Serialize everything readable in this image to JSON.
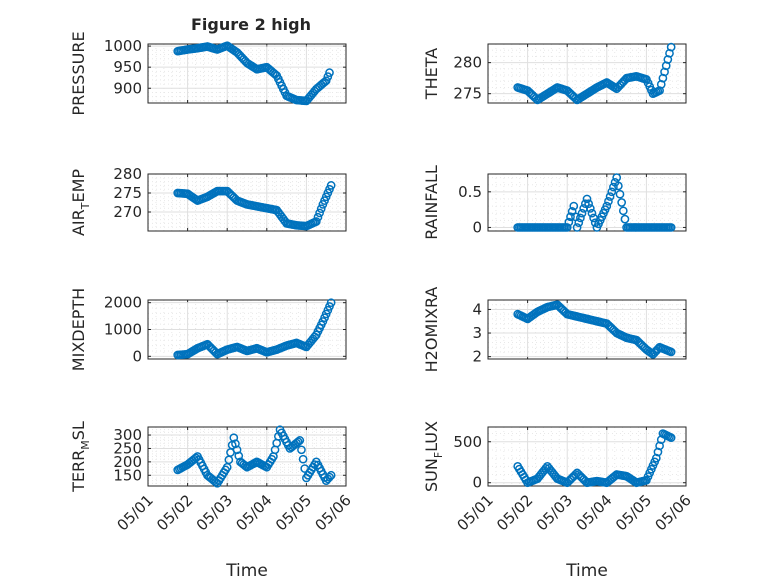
{
  "figure": {
    "title": "Figure 2 high"
  },
  "chart_data": [
    {
      "type": "scatter",
      "title": "Figure 2 high",
      "xlabel": "",
      "ylabel": "PRESSURE",
      "xlim": [
        "05/01",
        "05/06"
      ],
      "ylim": [
        865,
        1005
      ],
      "yticks": [
        900,
        950,
        1000
      ],
      "xticks": [
        "05/01",
        "05/02",
        "05/03",
        "05/04",
        "05/05",
        "05/06"
      ],
      "show_xticklabels": false,
      "grid": true,
      "minor_grid": true,
      "color": "#0072BD",
      "series": [
        {
          "x": [
            "05/01 18:00",
            "05/02 00:00",
            "05/02 06:00",
            "05/02 12:00",
            "05/02 18:00",
            "05/03 00:00",
            "05/03 06:00",
            "05/03 12:00",
            "05/03 18:00",
            "05/04 00:00",
            "05/04 06:00",
            "05/04 12:00",
            "05/04 18:00",
            "05/05 00:00",
            "05/05 06:00",
            "05/05 12:00",
            "05/05 14:00"
          ],
          "y": [
            988,
            992,
            995,
            999,
            992,
            1001,
            985,
            960,
            945,
            950,
            930,
            882,
            872,
            870,
            898,
            918,
            937
          ]
        }
      ]
    },
    {
      "type": "scatter",
      "title": "",
      "xlabel": "",
      "ylabel": "THETA",
      "xlim": [
        "05/01",
        "05/06"
      ],
      "ylim": [
        273.5,
        283
      ],
      "yticks": [
        275,
        280
      ],
      "xticks": [
        "05/01",
        "05/02",
        "05/03",
        "05/04",
        "05/05",
        "05/06"
      ],
      "show_xticklabels": false,
      "grid": true,
      "minor_grid": true,
      "color": "#0072BD",
      "series": [
        {
          "x": [
            "05/01 18:00",
            "05/02 00:00",
            "05/02 06:00",
            "05/02 12:00",
            "05/02 18:00",
            "05/03 00:00",
            "05/03 06:00",
            "05/03 12:00",
            "05/03 18:00",
            "05/04 00:00",
            "05/04 06:00",
            "05/04 12:00",
            "05/04 18:00",
            "05/05 00:00",
            "05/05 04:00",
            "05/05 08:00",
            "05/05 12:00",
            "05/05 15:00"
          ],
          "y": [
            276,
            275.5,
            274,
            275,
            276,
            275.5,
            274,
            275,
            276,
            276.8,
            275.8,
            277.5,
            277.8,
            277.3,
            275,
            275.5,
            279.5,
            282.5
          ]
        }
      ]
    },
    {
      "type": "scatter",
      "title": "",
      "xlabel": "",
      "ylabel": "AIR_TEMP",
      "xlim": [
        "05/01",
        "05/06"
      ],
      "ylim": [
        265,
        280
      ],
      "yticks": [
        270,
        275,
        280
      ],
      "xticks": [
        "05/01",
        "05/02",
        "05/03",
        "05/04",
        "05/05",
        "05/06"
      ],
      "show_xticklabels": false,
      "grid": true,
      "minor_grid": true,
      "color": "#0072BD",
      "series": [
        {
          "x": [
            "05/01 18:00",
            "05/02 00:00",
            "05/02 06:00",
            "05/02 12:00",
            "05/02 18:00",
            "05/03 00:00",
            "05/03 06:00",
            "05/03 12:00",
            "05/03 18:00",
            "05/04 00:00",
            "05/04 06:00",
            "05/04 12:00",
            "05/04 18:00",
            "05/05 00:00",
            "05/05 06:00",
            "05/05 10:00",
            "05/05 15:00"
          ],
          "y": [
            275,
            274.8,
            273,
            274,
            275.5,
            275.5,
            273,
            272,
            271.5,
            271,
            270.5,
            267,
            266.5,
            266.3,
            267.5,
            272,
            277
          ]
        }
      ]
    },
    {
      "type": "scatter",
      "title": "",
      "xlabel": "",
      "ylabel": "RAINFALL",
      "xlim": [
        "05/01",
        "05/06"
      ],
      "ylim": [
        -0.05,
        0.75
      ],
      "yticks": [
        0,
        0.5
      ],
      "xticks": [
        "05/01",
        "05/02",
        "05/03",
        "05/04",
        "05/05",
        "05/06"
      ],
      "show_xticklabels": false,
      "grid": true,
      "minor_grid": true,
      "color": "#0072BD",
      "series": [
        {
          "x": [
            "05/01 18:00",
            "05/02 06:00",
            "05/02 18:00",
            "05/03 00:00",
            "05/03 04:00",
            "05/03 06:00",
            "05/03 12:00",
            "05/03 18:00",
            "05/04 00:00",
            "05/04 06:00",
            "05/04 12:00",
            "05/04 18:00",
            "05/05 00:00",
            "05/05 12:00",
            "05/05 15:00"
          ],
          "y": [
            0,
            0,
            0,
            0,
            0.3,
            0,
            0.4,
            0,
            0.3,
            0.7,
            0,
            0,
            0,
            0,
            0
          ]
        }
      ]
    },
    {
      "type": "scatter",
      "title": "",
      "xlabel": "",
      "ylabel": "MIXDEPTH",
      "xlim": [
        "05/01",
        "05/06"
      ],
      "ylim": [
        -100,
        2100
      ],
      "yticks": [
        0,
        1000,
        2000
      ],
      "xticks": [
        "05/01",
        "05/02",
        "05/03",
        "05/04",
        "05/05",
        "05/06"
      ],
      "show_xticklabels": false,
      "grid": true,
      "minor_grid": true,
      "color": "#0072BD",
      "series": [
        {
          "x": [
            "05/01 18:00",
            "05/02 00:00",
            "05/02 06:00",
            "05/02 12:00",
            "05/02 18:00",
            "05/03 00:00",
            "05/03 06:00",
            "05/03 12:00",
            "05/03 18:00",
            "05/04 00:00",
            "05/04 06:00",
            "05/04 12:00",
            "05/04 18:00",
            "05/05 00:00",
            "05/05 06:00",
            "05/05 10:00",
            "05/05 15:00"
          ],
          "y": [
            50,
            80,
            300,
            450,
            80,
            250,
            350,
            200,
            300,
            150,
            250,
            400,
            500,
            350,
            800,
            1300,
            2000
          ]
        }
      ]
    },
    {
      "type": "scatter",
      "title": "",
      "xlabel": "",
      "ylabel": "H2OMIXRA",
      "xlim": [
        "05/01",
        "05/06"
      ],
      "ylim": [
        1.9,
        4.4
      ],
      "yticks": [
        2,
        3,
        4
      ],
      "xticks": [
        "05/01",
        "05/02",
        "05/03",
        "05/04",
        "05/05",
        "05/06"
      ],
      "show_xticklabels": false,
      "grid": true,
      "minor_grid": true,
      "color": "#0072BD",
      "series": [
        {
          "x": [
            "05/01 18:00",
            "05/02 00:00",
            "05/02 06:00",
            "05/02 12:00",
            "05/02 18:00",
            "05/03 00:00",
            "05/03 06:00",
            "05/03 12:00",
            "05/03 18:00",
            "05/04 00:00",
            "05/04 06:00",
            "05/04 12:00",
            "05/04 18:00",
            "05/05 00:00",
            "05/05 04:00",
            "05/05 08:00",
            "05/05 15:00"
          ],
          "y": [
            3.8,
            3.6,
            3.9,
            4.1,
            4.2,
            3.8,
            3.7,
            3.6,
            3.5,
            3.4,
            3.0,
            2.8,
            2.7,
            2.3,
            2.1,
            2.4,
            2.2
          ]
        }
      ]
    },
    {
      "type": "scatter",
      "title": "",
      "xlabel": "Time",
      "ylabel": "TERR_MSL",
      "xlim": [
        "05/01",
        "05/06"
      ],
      "ylim": [
        110,
        330
      ],
      "yticks": [
        150,
        200,
        250,
        300
      ],
      "xticks": [
        "05/01",
        "05/02",
        "05/03",
        "05/04",
        "05/05",
        "05/06"
      ],
      "show_xticklabels": true,
      "grid": true,
      "minor_grid": true,
      "color": "#0072BD",
      "series": [
        {
          "x": [
            "05/01 18:00",
            "05/02 00:00",
            "05/02 06:00",
            "05/02 12:00",
            "05/02 18:00",
            "05/03 00:00",
            "05/03 04:00",
            "05/03 08:00",
            "05/03 12:00",
            "05/03 18:00",
            "05/04 00:00",
            "05/04 04:00",
            "05/04 08:00",
            "05/04 14:00",
            "05/04 20:00",
            "05/05 00:00",
            "05/05 06:00",
            "05/05 12:00",
            "05/05 15:00"
          ],
          "y": [
            170,
            190,
            220,
            150,
            120,
            180,
            290,
            200,
            180,
            200,
            180,
            220,
            320,
            250,
            280,
            140,
            200,
            130,
            150
          ]
        }
      ]
    },
    {
      "type": "scatter",
      "title": "",
      "xlabel": "Time",
      "ylabel": "SUN_FLUX",
      "xlim": [
        "05/01",
        "05/06"
      ],
      "ylim": [
        -40,
        680
      ],
      "yticks": [
        0,
        500
      ],
      "xticks": [
        "05/01",
        "05/02",
        "05/03",
        "05/04",
        "05/05",
        "05/06"
      ],
      "show_xticklabels": true,
      "grid": true,
      "minor_grid": true,
      "color": "#0072BD",
      "series": [
        {
          "x": [
            "05/01 18:00",
            "05/02 00:00",
            "05/02 06:00",
            "05/02 12:00",
            "05/02 18:00",
            "05/03 00:00",
            "05/03 06:00",
            "05/03 12:00",
            "05/03 18:00",
            "05/04 00:00",
            "05/04 06:00",
            "05/04 12:00",
            "05/04 18:00",
            "05/05 00:00",
            "05/05 06:00",
            "05/05 10:00",
            "05/05 15:00"
          ],
          "y": [
            200,
            0,
            50,
            200,
            50,
            0,
            120,
            0,
            20,
            0,
            100,
            80,
            0,
            30,
            300,
            600,
            550
          ]
        }
      ]
    }
  ]
}
